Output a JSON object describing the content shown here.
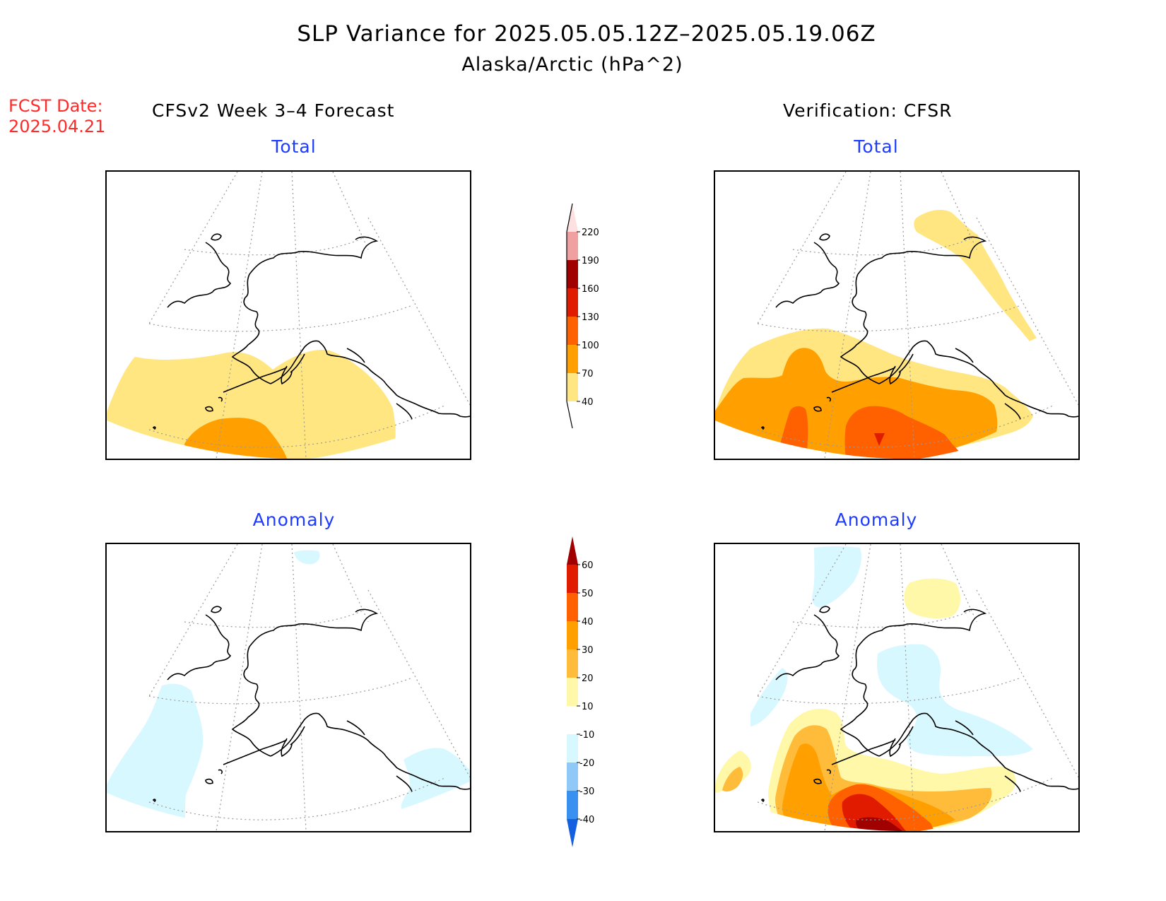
{
  "title": "SLP Variance for 2025.05.05.12Z–2025.05.19.06Z",
  "subtitle": "Alaska/Arctic (hPa^2)",
  "forecast_date": {
    "label": "FCST Date:",
    "value": "2025.04.21",
    "color": "#ff2a2a"
  },
  "columns": {
    "left": "CFSv2 Week 3–4 Forecast",
    "right": "Verification: CFSR"
  },
  "panels": {
    "forecast_total": "Total",
    "verification_total": "Total",
    "forecast_anomaly": "Anomaly",
    "verification_anomaly": "Anomaly"
  },
  "panel_title_color": "#1d3cff",
  "colorbar_total": {
    "labels": [
      "40",
      "70",
      "100",
      "130",
      "160",
      "190",
      "220"
    ],
    "colors": [
      "#ffe680",
      "#ffa000",
      "#ff6000",
      "#e01b00",
      "#a00000",
      "#f0a0a0",
      "#fde0e0"
    ]
  },
  "colorbar_anomaly": {
    "labels": [
      "-40",
      "-30",
      "-20",
      "-10",
      "10",
      "20",
      "30",
      "40",
      "50",
      "60"
    ],
    "colors": [
      "#1460e0",
      "#3a90f0",
      "#90c8f8",
      "#d8f8ff",
      "#ffffff",
      "#fff8a8",
      "#ffbc3a",
      "#ffa000",
      "#ff6000",
      "#e01b00",
      "#a00000"
    ]
  },
  "map_colors": {
    "total_40_70": "#ffe680",
    "total_70_100": "#ffa000",
    "total_100_130": "#ff6000",
    "total_130_160": "#e01b00",
    "anom_neg_10_20": "#d8f8ff",
    "anom_10_20": "#fff8a8",
    "anom_20_30": "#ffbc3a",
    "anom_30_40": "#ffa000",
    "anom_40_50": "#ff6000",
    "anom_50_60": "#e01b00",
    "anom_60_plus": "#a00000"
  }
}
